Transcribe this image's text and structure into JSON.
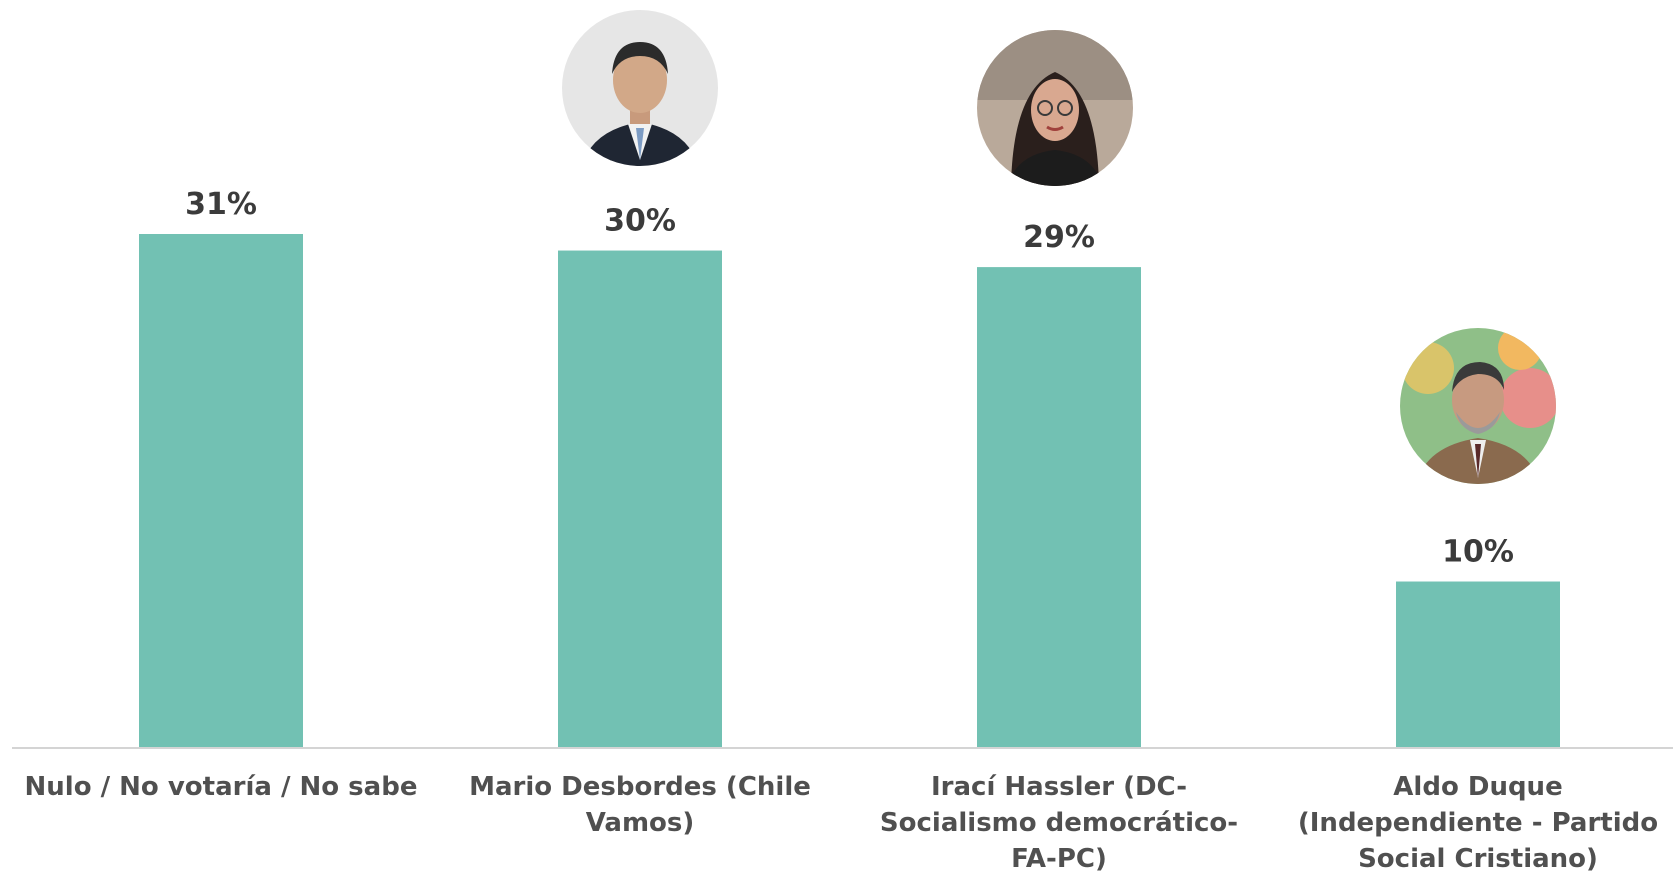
{
  "chart_data": {
    "type": "bar",
    "title": "",
    "xlabel": "",
    "ylabel": "",
    "ylim": [
      0,
      34
    ],
    "grid": false,
    "legend": "none",
    "bar_color": "#72C1B3",
    "value_suffix": "%",
    "categories": [
      "Nulo / No votaría / No sabe",
      "Mario Desbordes (Chile Vamos)",
      "Irací Hassler (DC-Socialismo democrático-FA-PC)",
      "Aldo Duque (Independiente - Partido Social Cristiano)"
    ],
    "values": [
      31,
      30,
      29,
      10
    ],
    "value_labels": [
      "31%",
      "30%",
      "29%",
      "10%"
    ],
    "photos": [
      null,
      "candidate-photo",
      "candidate-photo",
      "candidate-photo"
    ]
  }
}
